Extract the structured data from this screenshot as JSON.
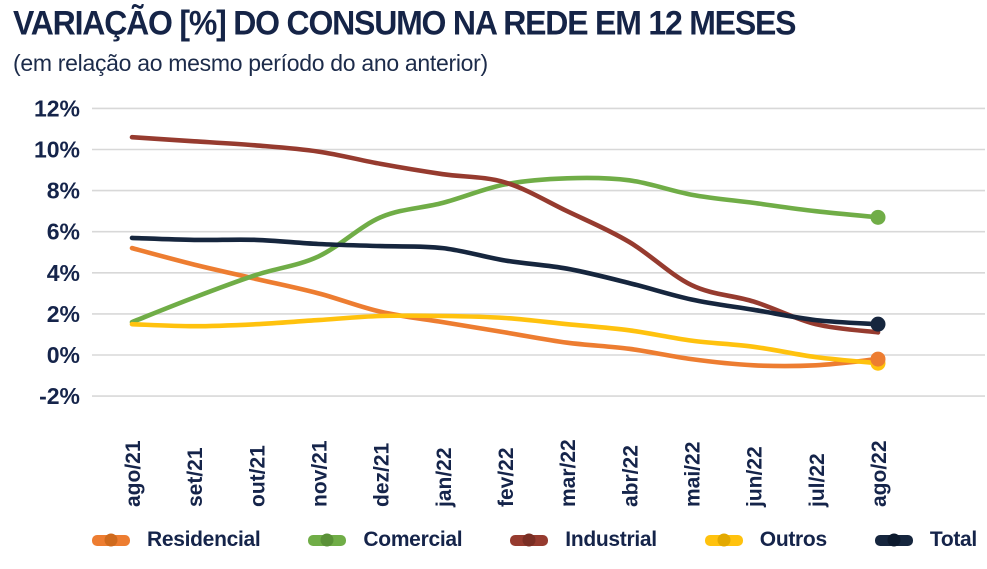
{
  "header": {
    "title": "VARIAÇÃO [%] DO CONSUMO NA REDE EM 12 MESES",
    "subtitle": "(em relação ao mesmo período do ano anterior)"
  },
  "colors": {
    "text_navy": "#15244a",
    "gridline": "#d8d8d8",
    "background": "#ffffff"
  },
  "chart_data": {
    "type": "line",
    "title": "VARIAÇÃO [%] DO CONSUMO NA REDE EM 12 MESES",
    "subtitle": "(em relação ao mesmo período do ano anterior)",
    "categories": [
      "ago/21",
      "set/21",
      "out/21",
      "nov/21",
      "dez/21",
      "jan/22",
      "fev/22",
      "mar/22",
      "abr/22",
      "mai/22",
      "jun/22",
      "jul/22",
      "ago/22"
    ],
    "ylim": [
      -2,
      12
    ],
    "ytick_labels": [
      "12%",
      "10%",
      "8%",
      "6%",
      "4%",
      "2%",
      "0%",
      "-2%"
    ],
    "grid": "horizontal",
    "legend_position": "bottom",
    "series": [
      {
        "name": "Residencial",
        "color": "#ED7D31",
        "marker_dot_color": "#cf6a1d",
        "end_marker": true,
        "end_marker_z": 2,
        "values": [
          5.2,
          4.4,
          3.7,
          3.0,
          2.1,
          1.6,
          1.1,
          0.6,
          0.3,
          -0.2,
          -0.5,
          -0.5,
          -0.2
        ]
      },
      {
        "name": "Comercial",
        "color": "#70AD47",
        "marker_dot_color": "#5a9137",
        "end_marker": true,
        "end_marker_z": 3,
        "values": [
          1.6,
          2.8,
          3.9,
          4.8,
          6.7,
          7.4,
          8.3,
          8.6,
          8.5,
          7.8,
          7.4,
          7.0,
          6.7
        ]
      },
      {
        "name": "Industrial",
        "color": "#963B2F",
        "marker_dot_color": "#7a2e24",
        "end_marker": false,
        "end_marker_z": 0,
        "values": [
          10.6,
          10.4,
          10.2,
          9.9,
          9.3,
          8.8,
          8.4,
          7.0,
          5.5,
          3.4,
          2.6,
          1.5,
          1.1
        ]
      },
      {
        "name": "Outros",
        "color": "#FFC20E",
        "marker_dot_color": "#e3a900",
        "end_marker": true,
        "end_marker_z": 1,
        "values": [
          1.5,
          1.4,
          1.5,
          1.7,
          1.9,
          1.9,
          1.8,
          1.5,
          1.2,
          0.7,
          0.4,
          -0.1,
          -0.4
        ]
      },
      {
        "name": "Total",
        "color": "#16263E",
        "marker_dot_color": "#0d1a2e",
        "end_marker": true,
        "end_marker_z": 4,
        "values": [
          5.7,
          5.6,
          5.6,
          5.4,
          5.3,
          5.2,
          4.6,
          4.2,
          3.5,
          2.7,
          2.2,
          1.7,
          1.5
        ]
      }
    ]
  }
}
